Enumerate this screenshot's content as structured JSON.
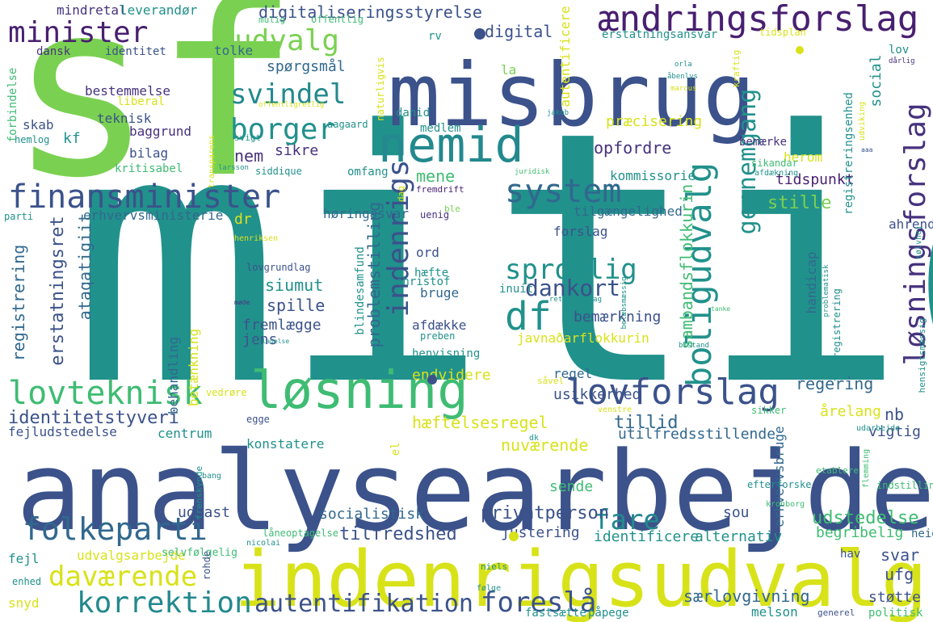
{
  "colors": {
    "yellow": "#d8e219",
    "lime": "#7ad151",
    "green": "#3fbc73",
    "teal": "#21918c",
    "cyan": "#23898e",
    "blue": "#31688e",
    "indigo": "#3b528b",
    "purple": "#46327e",
    "darkpurple": "#481f70",
    "lightgreen": "#a0da39"
  },
  "words": [
    {
      "text": "mitid",
      "color": "teal"
    },
    {
      "text": "sf",
      "color": "lime"
    },
    {
      "text": "analysearbejde",
      "color": "indigo"
    },
    {
      "text": "misbrug",
      "color": "indigo"
    },
    {
      "text": "indenrigsudvalg",
      "color": "yellow"
    },
    {
      "text": "nemid",
      "color": "cyan"
    },
    {
      "text": "ændringsforslag",
      "color": "darkpurple"
    },
    {
      "text": "løsning",
      "color": "green"
    },
    {
      "text": "lovforslag",
      "color": "indigo"
    },
    {
      "text": "finansminister",
      "color": "indigo"
    },
    {
      "text": "minister",
      "color": "darkpurple"
    },
    {
      "text": "udvalg",
      "color": "lime"
    },
    {
      "text": "svindel",
      "color": "cyan"
    },
    {
      "text": "borger",
      "color": "teal"
    },
    {
      "text": "lovteknisk",
      "color": "green"
    },
    {
      "text": "folkeparti",
      "color": "blue"
    },
    {
      "text": "korrektion",
      "color": "cyan"
    },
    {
      "text": "daværende",
      "color": "yellow"
    },
    {
      "text": "autentifikation",
      "color": "indigo"
    },
    {
      "text": "foreslå",
      "color": "indigo"
    },
    {
      "text": "fare",
      "color": "cyan"
    },
    {
      "text": "system",
      "color": "blue"
    },
    {
      "text": "df",
      "color": "teal"
    },
    {
      "text": "sproglig",
      "color": "teal"
    },
    {
      "text": "dankort",
      "color": "indigo"
    },
    {
      "text": "indenrigs",
      "color": "indigo"
    },
    {
      "text": "boligudvalg",
      "color": "teal"
    },
    {
      "text": "gennemgang",
      "color": "teal"
    },
    {
      "text": "løsningsforslag",
      "color": "purple"
    },
    {
      "text": "identitetstyveri",
      "color": "indigo"
    },
    {
      "text": "hæftelsesregel",
      "color": "yellow"
    },
    {
      "text": "nuværende",
      "color": "yellow"
    },
    {
      "text": "tillid",
      "color": "blue"
    },
    {
      "text": "utilfredsstillende",
      "color": "blue"
    },
    {
      "text": "privatperson",
      "color": "indigo"
    },
    {
      "text": "tilfredshed",
      "color": "indigo"
    },
    {
      "text": "socialistisk",
      "color": "blue"
    },
    {
      "text": "udstedelse",
      "color": "green"
    },
    {
      "text": "særlovgivning",
      "color": "blue"
    },
    {
      "text": "erstatningsret",
      "color": "indigo"
    },
    {
      "text": "registrering",
      "color": "blue"
    },
    {
      "text": "ataqatigiit",
      "color": "blue"
    },
    {
      "text": "problemstilling",
      "color": "blue"
    },
    {
      "text": "siumut",
      "color": "teal"
    },
    {
      "text": "spille",
      "color": "indigo"
    },
    {
      "text": "fremlægge",
      "color": "indigo"
    },
    {
      "text": "jens",
      "color": "indigo"
    },
    {
      "text": "opfordre",
      "color": "purple"
    },
    {
      "text": "stille",
      "color": "lime"
    },
    {
      "text": "tidspunkt",
      "color": "darkpurple"
    },
    {
      "text": "regering",
      "color": "blue"
    },
    {
      "text": "sambandsflokkurin",
      "color": "green"
    },
    {
      "text": "bemærkning",
      "color": "indigo"
    },
    {
      "text": "javnaðarflokkurin",
      "color": "yellow"
    },
    {
      "text": "retsstilling",
      "color": "teal"
    },
    {
      "text": "fejlregistrering",
      "color": "teal"
    },
    {
      "text": "digitaliseringsstyrelse",
      "color": "indigo"
    },
    {
      "text": "digital",
      "color": "indigo"
    },
    {
      "text": "spørgsmål",
      "color": "blue"
    },
    {
      "text": "præcisering",
      "color": "yellow"
    },
    {
      "text": "kommissorie",
      "color": "teal"
    },
    {
      "text": "høringssvar",
      "color": "blue"
    },
    {
      "text": "tilgængelighed",
      "color": "blue"
    },
    {
      "text": "forslag",
      "color": "indigo"
    },
    {
      "text": "svar",
      "color": "indigo"
    },
    {
      "text": "ufg",
      "color": "indigo"
    },
    {
      "text": "nb",
      "color": "indigo"
    },
    {
      "text": "vigtig",
      "color": "indigo"
    },
    {
      "text": "begribelig",
      "color": "green"
    },
    {
      "text": "justering",
      "color": "indigo"
    },
    {
      "text": "identificere",
      "color": "teal"
    },
    {
      "text": "alternativ",
      "color": "teal"
    },
    {
      "text": "udkast",
      "color": "indigo"
    },
    {
      "text": "sou",
      "color": "indigo"
    },
    {
      "text": "sende",
      "color": "green"
    },
    {
      "text": "endvidere",
      "color": "yellow"
    },
    {
      "text": "regel",
      "color": "blue"
    },
    {
      "text": "usikkerhed",
      "color": "indigo"
    },
    {
      "text": "centrum",
      "color": "teal"
    },
    {
      "text": "fejludstedelse",
      "color": "indigo"
    },
    {
      "text": "erhvervsbruge",
      "color": "blue"
    },
    {
      "text": "konstatere",
      "color": "teal"
    },
    {
      "text": "udvalgsarbejde",
      "color": "yellow"
    },
    {
      "text": "behandling",
      "color": "blue"
    },
    {
      "text": "betænkning",
      "color": "yellow"
    },
    {
      "text": "støtte",
      "color": "indigo"
    },
    {
      "text": "politisk",
      "color": "green"
    },
    {
      "text": "melson",
      "color": "teal"
    },
    {
      "text": "fastsætte",
      "color": "teal"
    },
    {
      "text": "påpege",
      "color": "teal"
    },
    {
      "text": "snyd",
      "color": "yellow"
    },
    {
      "text": "fejl",
      "color": "teal"
    },
    {
      "text": "enhed",
      "color": "teal"
    },
    {
      "text": "hav",
      "color": "indigo"
    },
    {
      "text": "heidi",
      "color": "blue"
    },
    {
      "text": "mindretal",
      "color": "purple"
    },
    {
      "text": "leverandør",
      "color": "teal"
    },
    {
      "text": "identitet",
      "color": "indigo"
    },
    {
      "text": "dansk",
      "color": "purple"
    },
    {
      "text": "tolke",
      "color": "blue"
    },
    {
      "text": "bestemmelse",
      "color": "purple"
    },
    {
      "text": "teknisk",
      "color": "indigo"
    },
    {
      "text": "baggrund",
      "color": "purple"
    },
    {
      "text": "skab",
      "color": "indigo"
    },
    {
      "text": "kf",
      "color": "teal"
    },
    {
      "text": "bilag",
      "color": "indigo"
    },
    {
      "text": "nem",
      "color": "purple"
    },
    {
      "text": "sikre",
      "color": "purple"
    },
    {
      "text": "mene",
      "color": "green"
    },
    {
      "text": "erhvervsministerie",
      "color": "blue"
    },
    {
      "text": "dr",
      "color": "yellow"
    },
    {
      "text": "parti",
      "color": "teal"
    },
    {
      "text": "erstatningsansvar",
      "color": "teal"
    },
    {
      "text": "autentificere",
      "color": "yellow"
    },
    {
      "text": "registreringsenhed",
      "color": "teal"
    },
    {
      "text": "social",
      "color": "teal"
    },
    {
      "text": "lov",
      "color": "teal"
    },
    {
      "text": "herom",
      "color": "yellow"
    },
    {
      "text": "bemærke",
      "color": "purple"
    },
    {
      "text": "handicap",
      "color": "blue"
    },
    {
      "text": "ahrendts",
      "color": "indigo"
    },
    {
      "text": "omfang",
      "color": "teal"
    },
    {
      "text": "inuit",
      "color": "teal"
    },
    {
      "text": "ord",
      "color": "indigo"
    },
    {
      "text": "hæfte",
      "color": "teal"
    },
    {
      "text": "bruge",
      "color": "blue"
    },
    {
      "text": "afdække",
      "color": "indigo"
    },
    {
      "text": "blindesamfund",
      "color": "teal"
    },
    {
      "text": "henvisning",
      "color": "teal"
    },
    {
      "text": "christof",
      "color": "teal"
    },
    {
      "text": "preben",
      "color": "teal"
    },
    {
      "text": "årelang",
      "color": "yellow"
    },
    {
      "text": "efterforske",
      "color": "teal"
    },
    {
      "text": "medlem",
      "color": "teal"
    },
    {
      "text": "danid",
      "color": "teal"
    },
    {
      "text": "la",
      "color": "lime"
    },
    {
      "text": "rv",
      "color": "teal"
    },
    {
      "text": "mulig",
      "color": "green"
    },
    {
      "text": "offentlig",
      "color": "green"
    },
    {
      "text": "tidsplan",
      "color": "yellow"
    },
    {
      "text": "naturligvis",
      "color": "yellow"
    },
    {
      "text": "liberal",
      "color": "yellow"
    },
    {
      "text": "forbindelse",
      "color": "green"
    },
    {
      "text": "hemlog",
      "color": "teal"
    },
    {
      "text": "kritisabel",
      "color": "green"
    },
    {
      "text": "svigt",
      "color": "teal"
    },
    {
      "text": "siddique",
      "color": "teal"
    },
    {
      "text": "aagaard",
      "color": "teal"
    },
    {
      "text": "sikandar",
      "color": "green"
    },
    {
      "text": "afdækning",
      "color": "teal"
    },
    {
      "text": "fremdrift",
      "color": "darkpurple"
    },
    {
      "text": "uenig",
      "color": "purple"
    },
    {
      "text": "ble",
      "color": "lime"
    },
    {
      "text": "dag",
      "color": "yellow"
    },
    {
      "text": "kraftig",
      "color": "yellow"
    },
    {
      "text": "udviking",
      "color": "yellow"
    },
    {
      "text": "henriksen",
      "color": "yellow"
    },
    {
      "text": "lovgrundlag",
      "color": "indigo"
    },
    {
      "text": "sølvhej",
      "color": "teal"
    },
    {
      "text": "selvfølgelig",
      "color": "green"
    },
    {
      "text": "fejlregistrering",
      "color": "teal"
    },
    {
      "text": "indstilling",
      "color": "green"
    },
    {
      "text": "vedrøre",
      "color": "yellow"
    },
    {
      "text": "hensigtsmæssig",
      "color": "teal"
    },
    {
      "text": "sikker",
      "color": "green"
    },
    {
      "text": "venstre",
      "color": "yellow"
    },
    {
      "text": "egge",
      "color": "indigo"
    },
    {
      "text": "rohde",
      "color": "indigo"
    },
    {
      "text": "nicolai",
      "color": "teal"
    },
    {
      "text": "frenskynde",
      "color": "teal"
    },
    {
      "text": "niels",
      "color": "teal"
    },
    {
      "text": "kronborg",
      "color": "green"
    },
    {
      "text": "etablere",
      "color": "green"
    },
    {
      "text": "flemming",
      "color": "green"
    },
    {
      "text": "udarbejde",
      "color": "teal"
    },
    {
      "text": "låneoptagelse",
      "color": "green"
    },
    {
      "text": "følge",
      "color": "teal"
    },
    {
      "text": "generel",
      "color": "indigo"
    },
    {
      "text": "bang",
      "color": "teal"
    },
    {
      "text": "el",
      "color": "yellow"
    },
    {
      "text": "dk",
      "color": "teal"
    },
    {
      "text": "transparens",
      "color": "yellow"
    },
    {
      "text": "offentligretlig",
      "color": "yellow"
    },
    {
      "text": "jakob",
      "color": "teal"
    },
    {
      "text": "marcus",
      "color": "yellow"
    },
    {
      "text": "åbenlys",
      "color": "teal"
    },
    {
      "text": "orla",
      "color": "teal"
    },
    {
      "text": "dårlig",
      "color": "purple"
    },
    {
      "text": "larsson",
      "color": "teal"
    },
    {
      "text": "juridisk",
      "color": "green"
    },
    {
      "text": "retsgrundlag",
      "color": "teal"
    },
    {
      "text": "belæbsmæssig",
      "color": "teal"
    },
    {
      "text": "problematisk",
      "color": "teal"
    },
    {
      "text": "bistand",
      "color": "teal"
    },
    {
      "text": "tilladelse",
      "color": "teal"
    },
    {
      "text": "tanke",
      "color": "green"
    },
    {
      "text": "møde",
      "color": "purple"
    },
    {
      "text": "såvel",
      "color": "yellow"
    },
    {
      "text": "aaa",
      "color": "indigo"
    }
  ]
}
